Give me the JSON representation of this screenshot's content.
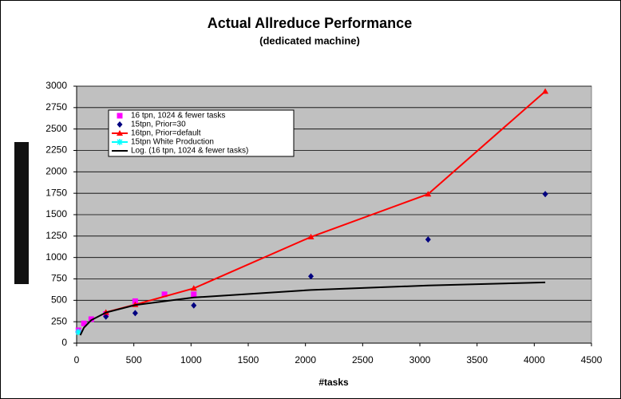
{
  "chart_data": {
    "type": "scatter",
    "title": "Actual Allreduce Performance",
    "subtitle": "(dedicated machine)",
    "x_label": "#tasks",
    "xlim": [
      0,
      4500
    ],
    "ylim": [
      0,
      3000
    ],
    "xticks": [
      0,
      500,
      1000,
      1500,
      2000,
      2500,
      3000,
      3500,
      4000,
      4500
    ],
    "yticks": [
      0,
      250,
      500,
      750,
      1000,
      1250,
      1500,
      1750,
      2000,
      2250,
      2500,
      2750,
      3000
    ],
    "grid": true,
    "legend": "upper-left",
    "series": [
      {
        "name": "16 tpn, 1024 & fewer tasks",
        "color": "#ff00ff",
        "marker": "square",
        "line": false,
        "x": [
          16,
          64,
          128,
          256,
          512,
          768,
          1024
        ],
        "values": [
          150,
          230,
          280,
          340,
          490,
          570,
          570
        ]
      },
      {
        "name": "15tpn, Prior=30",
        "color": "#000080",
        "marker": "diamond",
        "line": false,
        "x": [
          256,
          512,
          1024,
          2048,
          3072,
          4096
        ],
        "values": [
          310,
          350,
          440,
          780,
          1210,
          1740
        ]
      },
      {
        "name": "16tpn, Prior=default",
        "color": "#ff0000",
        "marker": "triangle",
        "line": true,
        "x": [
          256,
          512,
          1024,
          2048,
          3072,
          4096
        ],
        "values": [
          360,
          450,
          640,
          1240,
          1740,
          2940
        ]
      },
      {
        "name": "15tpn White Production",
        "color": "#00ffff",
        "marker": "asterisk",
        "line": true,
        "x": [
          16
        ],
        "values": [
          130
        ]
      },
      {
        "name": "Log. (16 tpn, 1024 & fewer tasks)",
        "color": "#000000",
        "marker": "none",
        "line": true,
        "x": [
          32,
          64,
          128,
          256,
          512,
          1024,
          2048,
          3072,
          4096
        ],
        "values": [
          93,
          181,
          269,
          357,
          445,
          533,
          621,
          673,
          709
        ]
      }
    ]
  }
}
